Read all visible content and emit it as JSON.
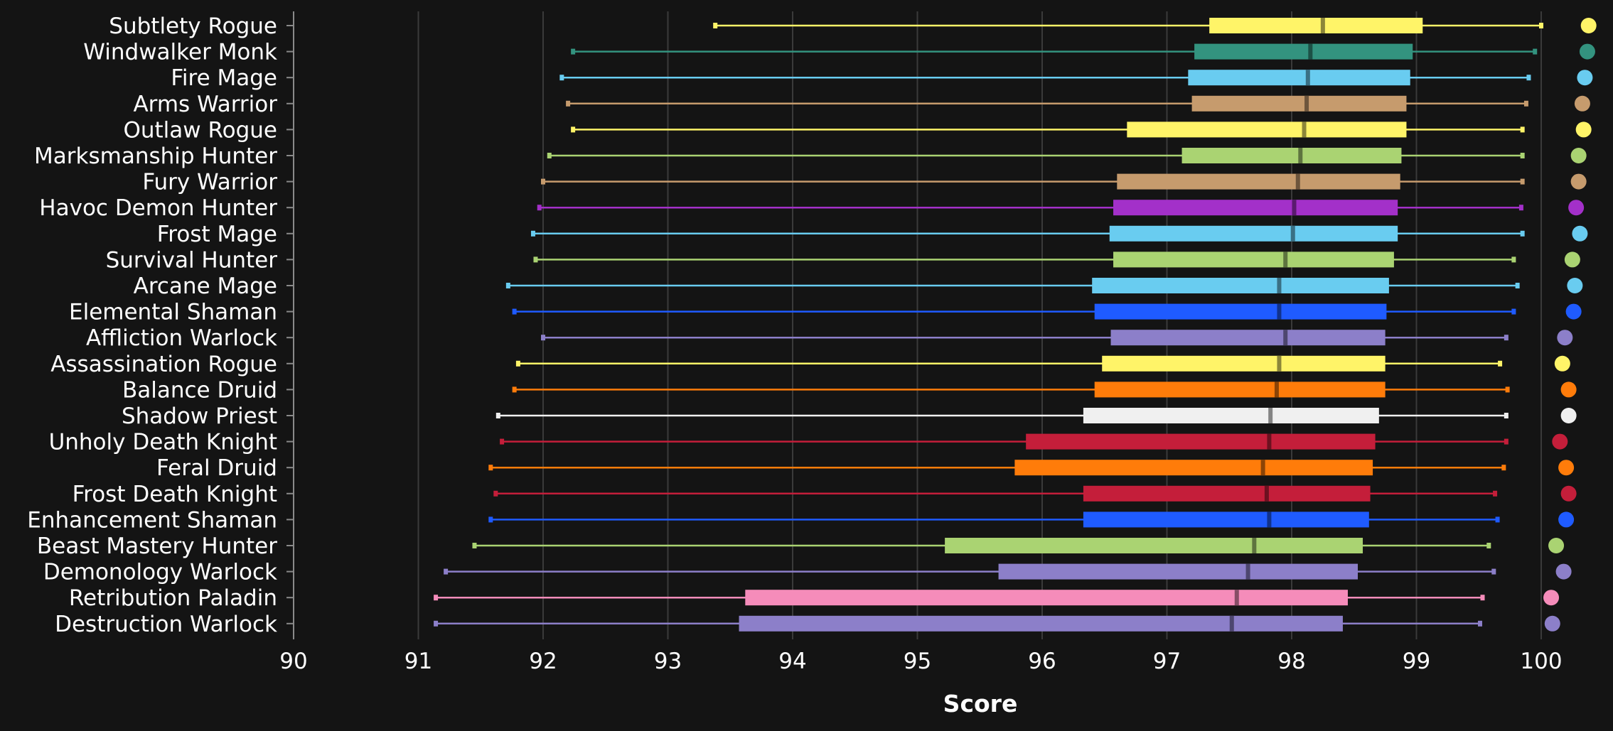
{
  "chart_data": {
    "type": "box",
    "title": "",
    "xlabel": "Score",
    "ylabel": "",
    "xlim": [
      90,
      100
    ],
    "xticks": [
      90,
      91,
      92,
      93,
      94,
      95,
      96,
      97,
      98,
      99,
      100
    ],
    "grid": true,
    "legend": "none",
    "series": [
      {
        "label": "Subtlety Rogue",
        "color": "#FFF468",
        "min": 93.38,
        "q1": 97.34,
        "median": 98.25,
        "q3": 99.05,
        "max": 100.0,
        "dot": 100.38
      },
      {
        "label": "Windwalker Monk",
        "color": "#33937F",
        "min": 92.24,
        "q1": 97.22,
        "median": 98.15,
        "q3": 98.97,
        "max": 99.95,
        "dot": 100.37
      },
      {
        "label": "Fire Mage",
        "color": "#69CCF0",
        "min": 92.15,
        "q1": 97.17,
        "median": 98.13,
        "q3": 98.95,
        "max": 99.9,
        "dot": 100.35
      },
      {
        "label": "Arms Warrior",
        "color": "#C69B6D",
        "min": 92.2,
        "q1": 97.2,
        "median": 98.12,
        "q3": 98.92,
        "max": 99.88,
        "dot": 100.33
      },
      {
        "label": "Outlaw Rogue",
        "color": "#FFF468",
        "min": 92.24,
        "q1": 96.68,
        "median": 98.1,
        "q3": 98.92,
        "max": 99.85,
        "dot": 100.34
      },
      {
        "label": "Marksmanship Hunter",
        "color": "#AAD372",
        "min": 92.05,
        "q1": 97.12,
        "median": 98.07,
        "q3": 98.88,
        "max": 99.85,
        "dot": 100.3
      },
      {
        "label": "Fury Warrior",
        "color": "#C69B6D",
        "min": 92.0,
        "q1": 96.6,
        "median": 98.05,
        "q3": 98.87,
        "max": 99.85,
        "dot": 100.3
      },
      {
        "label": "Havoc Demon Hunter",
        "color": "#A330C9",
        "min": 91.97,
        "q1": 96.57,
        "median": 98.02,
        "q3": 98.85,
        "max": 99.84,
        "dot": 100.28
      },
      {
        "label": "Frost Mage",
        "color": "#69CCF0",
        "min": 91.92,
        "q1": 96.54,
        "median": 98.01,
        "q3": 98.85,
        "max": 99.85,
        "dot": 100.31
      },
      {
        "label": "Survival Hunter",
        "color": "#AAD372",
        "min": 91.94,
        "q1": 96.57,
        "median": 97.95,
        "q3": 98.82,
        "max": 99.78,
        "dot": 100.25
      },
      {
        "label": "Arcane Mage",
        "color": "#69CCF0",
        "min": 91.72,
        "q1": 96.4,
        "median": 97.9,
        "q3": 98.78,
        "max": 99.81,
        "dot": 100.27
      },
      {
        "label": "Elemental Shaman",
        "color": "#1F5BFF",
        "min": 91.77,
        "q1": 96.42,
        "median": 97.9,
        "q3": 98.76,
        "max": 99.78,
        "dot": 100.26
      },
      {
        "label": "Affliction Warlock",
        "color": "#8C7FC9",
        "min": 92.0,
        "q1": 96.55,
        "median": 97.95,
        "q3": 98.75,
        "max": 99.72,
        "dot": 100.19
      },
      {
        "label": "Assassination Rogue",
        "color": "#FFF468",
        "min": 91.8,
        "q1": 96.48,
        "median": 97.9,
        "q3": 98.75,
        "max": 99.67,
        "dot": 100.17
      },
      {
        "label": "Balance Druid",
        "color": "#FF7C0A",
        "min": 91.77,
        "q1": 96.42,
        "median": 97.88,
        "q3": 98.75,
        "max": 99.73,
        "dot": 100.22
      },
      {
        "label": "Shadow Priest",
        "color": "#F0F0F0",
        "min": 91.64,
        "q1": 96.33,
        "median": 97.83,
        "q3": 98.7,
        "max": 99.72,
        "dot": 100.22
      },
      {
        "label": "Unholy Death Knight",
        "color": "#C41E3A",
        "min": 91.67,
        "q1": 95.87,
        "median": 97.82,
        "q3": 98.67,
        "max": 99.72,
        "dot": 100.15
      },
      {
        "label": "Feral Druid",
        "color": "#FF7C0A",
        "min": 91.58,
        "q1": 95.78,
        "median": 97.77,
        "q3": 98.65,
        "max": 99.7,
        "dot": 100.2
      },
      {
        "label": "Frost Death Knight",
        "color": "#C41E3A",
        "min": 91.62,
        "q1": 96.33,
        "median": 97.8,
        "q3": 98.63,
        "max": 99.63,
        "dot": 100.22
      },
      {
        "label": "Enhancement Shaman",
        "color": "#1F5BFF",
        "min": 91.58,
        "q1": 96.33,
        "median": 97.82,
        "q3": 98.62,
        "max": 99.65,
        "dot": 100.2
      },
      {
        "label": "Beast Mastery Hunter",
        "color": "#AAD372",
        "min": 91.45,
        "q1": 95.22,
        "median": 97.7,
        "q3": 98.57,
        "max": 99.58,
        "dot": 100.12
      },
      {
        "label": "Demonology Warlock",
        "color": "#8C7FC9",
        "min": 91.22,
        "q1": 95.65,
        "median": 97.65,
        "q3": 98.53,
        "max": 99.62,
        "dot": 100.18
      },
      {
        "label": "Retribution Paladin",
        "color": "#F58CBA",
        "min": 91.14,
        "q1": 93.62,
        "median": 97.56,
        "q3": 98.45,
        "max": 99.53,
        "dot": 100.08
      },
      {
        "label": "Destruction Warlock",
        "color": "#8C7FC9",
        "min": 91.14,
        "q1": 93.57,
        "median": 97.52,
        "q3": 98.41,
        "max": 99.51,
        "dot": 100.09
      }
    ]
  }
}
